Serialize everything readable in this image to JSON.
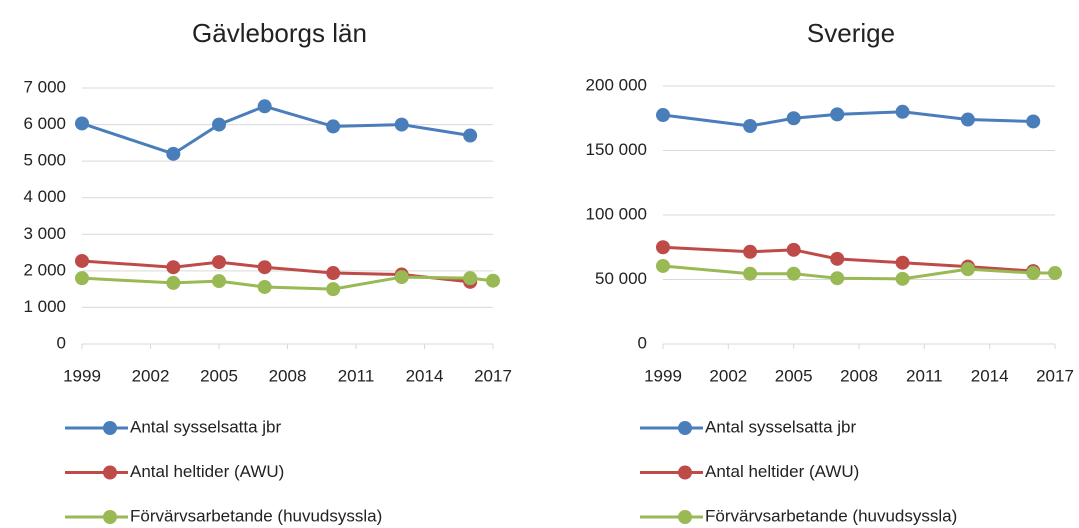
{
  "chart_data": [
    {
      "type": "line",
      "title": "Gävleborgs län",
      "x": [
        1999,
        2003,
        2005,
        2007,
        2010,
        2013,
        2016,
        2017
      ],
      "series": [
        {
          "name": "Antal sysselsatta jbr",
          "color": "#4a7ebb",
          "values": [
            6030,
            5200,
            6000,
            6500,
            5950,
            6000,
            5700,
            null
          ]
        },
        {
          "name": "Antal heltider (AWU)",
          "color": "#be4b48",
          "values": [
            2270,
            2100,
            2240,
            2100,
            1940,
            1900,
            1700,
            null
          ]
        },
        {
          "name": "Förvärvsarbetande (huvudsyssla)",
          "color": "#98b954",
          "values": [
            1800,
            1670,
            1720,
            1560,
            1500,
            1830,
            1800,
            1730
          ]
        }
      ],
      "xlim": [
        1999,
        2017
      ],
      "xticks": [
        1999,
        2002,
        2005,
        2008,
        2011,
        2014,
        2017
      ],
      "ylim": [
        0,
        7000
      ],
      "yticks": [
        0,
        {
          "value": 1000,
          "label": "1 000"
        },
        {
          "value": 2000,
          "label": "2 000"
        },
        {
          "value": 3000,
          "label": "3 000"
        },
        {
          "value": 4000,
          "label": "4 000"
        },
        {
          "value": 5000,
          "label": "5 000"
        },
        {
          "value": 6000,
          "label": "6 000"
        },
        {
          "value": 7000,
          "label": "7 000"
        }
      ],
      "grid": true,
      "legend": "bottom"
    },
    {
      "type": "line",
      "title": "Sverige",
      "x": [
        1999,
        2003,
        2005,
        2007,
        2010,
        2013,
        2016,
        2017
      ],
      "series": [
        {
          "name": "Antal sysselsatta jbr",
          "color": "#4a7ebb",
          "values": [
            177500,
            169000,
            175000,
            178000,
            180000,
            174000,
            172500,
            null
          ]
        },
        {
          "name": "Antal heltider (AWU)",
          "color": "#be4b48",
          "values": [
            75000,
            71500,
            73000,
            66000,
            63000,
            60000,
            56500,
            null
          ]
        },
        {
          "name": "Förvärvsarbetande (huvudsyssla)",
          "color": "#98b954",
          "values": [
            60500,
            54500,
            54500,
            51000,
            50500,
            58000,
            55000,
            55000
          ]
        }
      ],
      "xlim": [
        1999,
        2017
      ],
      "xticks": [
        1999,
        2002,
        2005,
        2008,
        2011,
        2014,
        2017
      ],
      "ylim": [
        0,
        200000
      ],
      "yticks": [
        0,
        {
          "value": 50000,
          "label": "50 000"
        },
        {
          "value": 100000,
          "label": "100 000"
        },
        {
          "value": 150000,
          "label": "150 000"
        },
        {
          "value": 200000,
          "label": "200 000"
        }
      ],
      "grid": true,
      "legend": "bottom"
    }
  ]
}
